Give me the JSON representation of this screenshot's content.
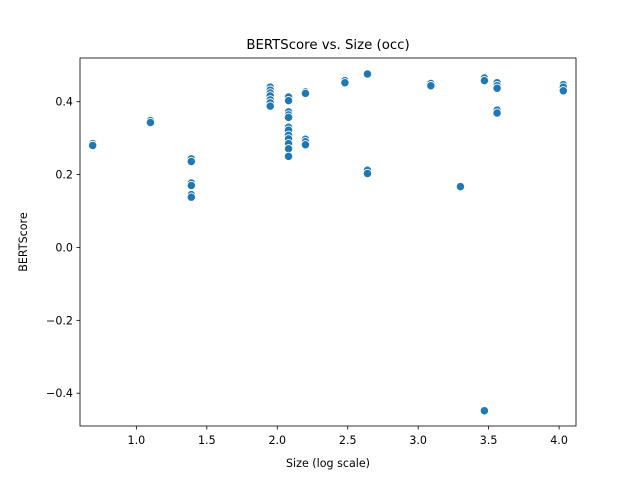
{
  "chart_data": {
    "type": "scatter",
    "title": "BERTScore vs. Size (occ)",
    "xlabel": "Size (log scale)",
    "ylabel": "BERTScore",
    "xlim": [
      0.6,
      4.12
    ],
    "ylim": [
      -0.49,
      0.52
    ],
    "xticks": [
      1.0,
      1.5,
      2.0,
      2.5,
      3.0,
      3.5,
      4.0
    ],
    "xtick_labels": [
      "1.0",
      "1.5",
      "2.0",
      "2.5",
      "3.0",
      "3.5",
      "4.0"
    ],
    "yticks": [
      -0.4,
      -0.2,
      0.0,
      0.2,
      0.4
    ],
    "ytick_labels": [
      "−0.4",
      "−0.2",
      "0.0",
      "0.2",
      "0.4"
    ],
    "grid": false,
    "marker_color": "#1f77b4",
    "points": [
      {
        "x": 0.69,
        "y": 0.285
      },
      {
        "x": 0.69,
        "y": 0.28
      },
      {
        "x": 1.1,
        "y": 0.348
      },
      {
        "x": 1.1,
        "y": 0.343
      },
      {
        "x": 1.39,
        "y": 0.243
      },
      {
        "x": 1.39,
        "y": 0.236
      },
      {
        "x": 1.39,
        "y": 0.177
      },
      {
        "x": 1.39,
        "y": 0.17
      },
      {
        "x": 1.39,
        "y": 0.145
      },
      {
        "x": 1.39,
        "y": 0.138
      },
      {
        "x": 1.95,
        "y": 0.44
      },
      {
        "x": 1.95,
        "y": 0.432
      },
      {
        "x": 1.95,
        "y": 0.424
      },
      {
        "x": 1.95,
        "y": 0.416
      },
      {
        "x": 1.95,
        "y": 0.405
      },
      {
        "x": 1.95,
        "y": 0.397
      },
      {
        "x": 1.95,
        "y": 0.388
      },
      {
        "x": 2.08,
        "y": 0.413
      },
      {
        "x": 2.08,
        "y": 0.403
      },
      {
        "x": 2.08,
        "y": 0.372
      },
      {
        "x": 2.08,
        "y": 0.364
      },
      {
        "x": 2.08,
        "y": 0.357
      },
      {
        "x": 2.08,
        "y": 0.33
      },
      {
        "x": 2.08,
        "y": 0.322
      },
      {
        "x": 2.08,
        "y": 0.308
      },
      {
        "x": 2.08,
        "y": 0.298
      },
      {
        "x": 2.08,
        "y": 0.285
      },
      {
        "x": 2.08,
        "y": 0.271
      },
      {
        "x": 2.08,
        "y": 0.25
      },
      {
        "x": 2.2,
        "y": 0.427
      },
      {
        "x": 2.2,
        "y": 0.423
      },
      {
        "x": 2.2,
        "y": 0.297
      },
      {
        "x": 2.2,
        "y": 0.29
      },
      {
        "x": 2.2,
        "y": 0.282
      },
      {
        "x": 2.48,
        "y": 0.458
      },
      {
        "x": 2.48,
        "y": 0.452
      },
      {
        "x": 2.64,
        "y": 0.476
      },
      {
        "x": 2.64,
        "y": 0.212
      },
      {
        "x": 2.64,
        "y": 0.203
      },
      {
        "x": 3.09,
        "y": 0.45
      },
      {
        "x": 3.09,
        "y": 0.444
      },
      {
        "x": 3.3,
        "y": 0.167
      },
      {
        "x": 3.47,
        "y": 0.465
      },
      {
        "x": 3.47,
        "y": 0.458
      },
      {
        "x": 3.47,
        "y": -0.448
      },
      {
        "x": 3.56,
        "y": 0.452
      },
      {
        "x": 3.56,
        "y": 0.444
      },
      {
        "x": 3.56,
        "y": 0.437
      },
      {
        "x": 3.56,
        "y": 0.377
      },
      {
        "x": 3.56,
        "y": 0.369
      },
      {
        "x": 4.03,
        "y": 0.447
      },
      {
        "x": 4.03,
        "y": 0.44
      },
      {
        "x": 4.03,
        "y": 0.43
      }
    ]
  }
}
